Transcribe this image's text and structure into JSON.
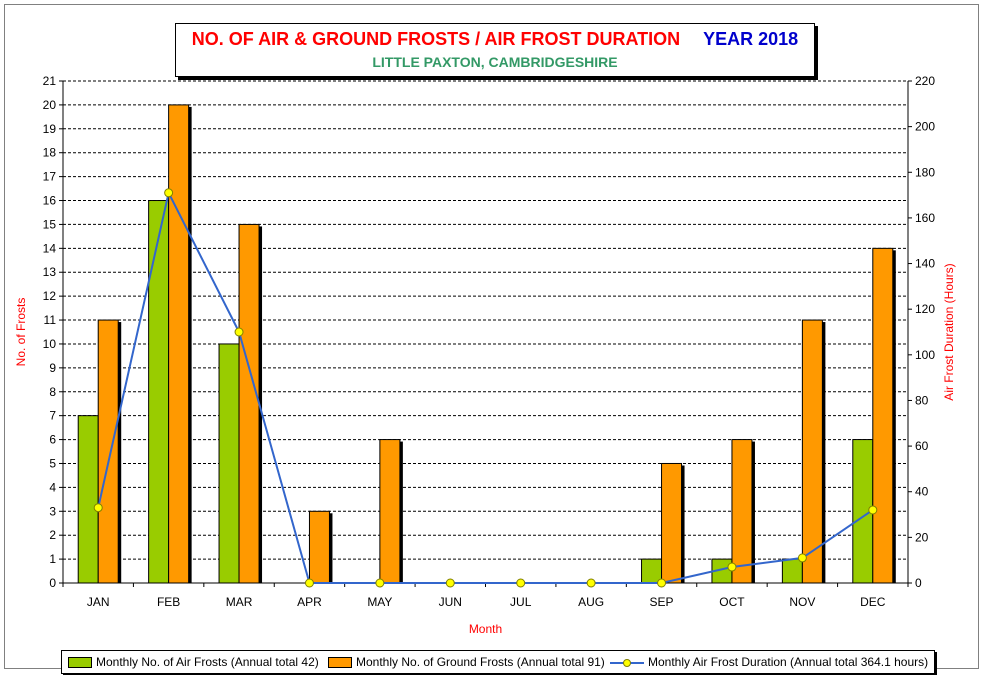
{
  "header": {
    "title": "NO. OF AIR & GROUND FROSTS / AIR FROST DURATION",
    "year": "YEAR 2018",
    "subtitle": "LITTLE PAXTON, CAMBRIDGESHIRE"
  },
  "chart_data": {
    "type": "bar",
    "title": "NO. OF AIR & GROUND FROSTS / AIR FROST DURATION",
    "subtitle": "LITTLE PAXTON, CAMBRIDGESHIRE",
    "year": "YEAR 2018",
    "xlabel": "Month",
    "ylabel": "No. of Frosts",
    "y2label": "Air Frost Duration (Hours)",
    "categories": [
      "JAN",
      "FEB",
      "MAR",
      "APR",
      "MAY",
      "JUN",
      "JUL",
      "AUG",
      "SEP",
      "OCT",
      "NOV",
      "DEC"
    ],
    "ylim": [
      0,
      21
    ],
    "y_ticks": [
      0,
      1,
      2,
      3,
      4,
      5,
      6,
      7,
      8,
      9,
      10,
      11,
      12,
      13,
      14,
      15,
      16,
      17,
      18,
      19,
      20,
      21
    ],
    "y2lim": [
      0,
      220
    ],
    "y2_ticks": [
      0,
      20,
      40,
      60,
      80,
      100,
      120,
      140,
      160,
      180,
      200,
      220
    ],
    "grid": true,
    "legend_position": "bottom",
    "series": [
      {
        "name": "Monthly No. of Air Frosts (Annual total 42)",
        "type": "bar",
        "axis": "left",
        "color": "#99cc00",
        "values": [
          7,
          16,
          10,
          0,
          0,
          0,
          0,
          0,
          1,
          1,
          1,
          6
        ]
      },
      {
        "name": "Monthly No. of Ground Frosts (Annual total 91)",
        "type": "bar",
        "axis": "left",
        "color": "#ff9900",
        "values": [
          11,
          20,
          15,
          3,
          6,
          0,
          0,
          0,
          5,
          6,
          11,
          14
        ]
      },
      {
        "name": "Monthly Air Frost Duration (Annual total 364.1 hours)",
        "type": "line",
        "axis": "right",
        "color": "#3366cc",
        "marker_color": "#ffff00",
        "values": [
          33,
          171,
          110,
          0,
          0,
          0,
          0,
          0,
          0,
          7,
          11,
          32
        ]
      }
    ]
  }
}
